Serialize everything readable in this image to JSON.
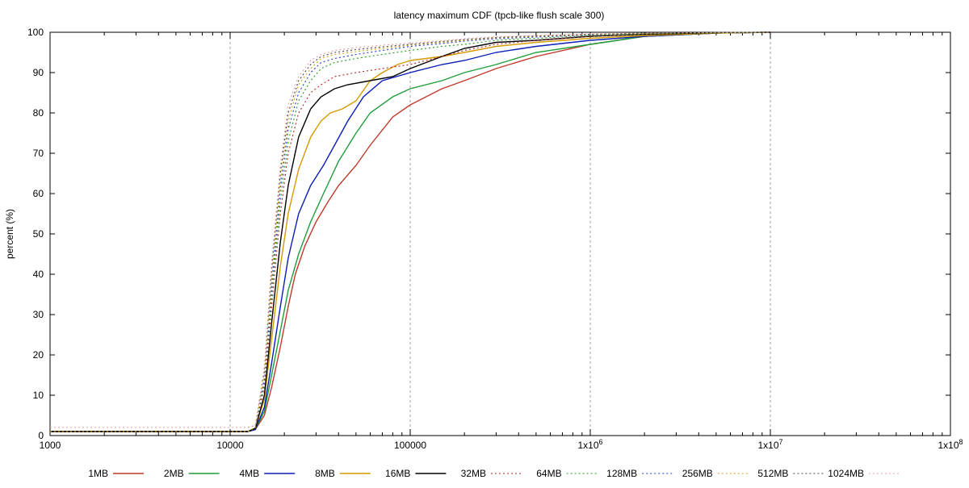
{
  "chart_data": {
    "type": "line",
    "title": "latency maximum CDF (tpcb-like flush scale 300)",
    "xlabel": "",
    "ylabel": "percent (%)",
    "x_scale": "log",
    "xlim": [
      1000,
      100000000
    ],
    "ylim": [
      0,
      100
    ],
    "grid": "vertical dashed at decades",
    "legend_position": "bottom",
    "x_ticks": [
      {
        "value": 1000,
        "label": "1000"
      },
      {
        "value": 10000,
        "label": "10000"
      },
      {
        "value": 100000,
        "label": "100000"
      },
      {
        "value": 1000000,
        "label": "1x10^6"
      },
      {
        "value": 10000000,
        "label": "1x10^7"
      },
      {
        "value": 100000000,
        "label": "1x10^8"
      }
    ],
    "y_ticks": [
      0,
      10,
      20,
      30,
      40,
      50,
      60,
      70,
      80,
      90,
      100
    ],
    "series": [
      {
        "name": "1MB",
        "color": "#c0392b",
        "dash": "solid",
        "points": [
          [
            1000,
            1
          ],
          [
            12500,
            1
          ],
          [
            13800,
            1.5
          ],
          [
            15500,
            5
          ],
          [
            17000,
            12
          ],
          [
            19000,
            22
          ],
          [
            21000,
            32
          ],
          [
            23000,
            40
          ],
          [
            26000,
            47
          ],
          [
            30000,
            53
          ],
          [
            35000,
            58
          ],
          [
            40000,
            62
          ],
          [
            50000,
            67
          ],
          [
            60000,
            72
          ],
          [
            80000,
            79
          ],
          [
            100000,
            82
          ],
          [
            150000,
            86
          ],
          [
            200000,
            88
          ],
          [
            300000,
            91
          ],
          [
            500000,
            94
          ],
          [
            1000000,
            97
          ],
          [
            2000000,
            99
          ],
          [
            5000000,
            99.8
          ],
          [
            10000000,
            100
          ]
        ]
      },
      {
        "name": "2MB",
        "color": "#1e9e3a",
        "dash": "solid",
        "points": [
          [
            1000,
            1
          ],
          [
            12500,
            1
          ],
          [
            13800,
            1.5
          ],
          [
            15500,
            6
          ],
          [
            17000,
            15
          ],
          [
            19000,
            26
          ],
          [
            21000,
            36
          ],
          [
            24000,
            45
          ],
          [
            28000,
            53
          ],
          [
            33000,
            60
          ],
          [
            40000,
            68
          ],
          [
            50000,
            75
          ],
          [
            60000,
            80
          ],
          [
            80000,
            84
          ],
          [
            100000,
            86
          ],
          [
            150000,
            88
          ],
          [
            200000,
            90
          ],
          [
            300000,
            92
          ],
          [
            500000,
            95
          ],
          [
            1000000,
            97
          ],
          [
            2000000,
            99
          ],
          [
            5000000,
            99.8
          ],
          [
            10000000,
            100
          ]
        ]
      },
      {
        "name": "4MB",
        "color": "#0b1fb5",
        "dash": "solid",
        "points": [
          [
            1000,
            1
          ],
          [
            12500,
            1
          ],
          [
            13800,
            1.5
          ],
          [
            15500,
            7
          ],
          [
            17000,
            18
          ],
          [
            19000,
            32
          ],
          [
            21000,
            44
          ],
          [
            24000,
            55
          ],
          [
            28000,
            62
          ],
          [
            33000,
            67
          ],
          [
            38000,
            72
          ],
          [
            45000,
            78
          ],
          [
            55000,
            84
          ],
          [
            70000,
            88
          ],
          [
            100000,
            90
          ],
          [
            150000,
            92
          ],
          [
            200000,
            93
          ],
          [
            300000,
            95
          ],
          [
            500000,
            96.5
          ],
          [
            1000000,
            98
          ],
          [
            2000000,
            99
          ],
          [
            5000000,
            99.8
          ],
          [
            10000000,
            100
          ]
        ]
      },
      {
        "name": "8MB",
        "color": "#d49a00",
        "dash": "solid",
        "points": [
          [
            1000,
            1
          ],
          [
            12500,
            1
          ],
          [
            13800,
            1.8
          ],
          [
            15500,
            9
          ],
          [
            17000,
            24
          ],
          [
            19000,
            42
          ],
          [
            21000,
            55
          ],
          [
            24000,
            66
          ],
          [
            28000,
            74
          ],
          [
            32000,
            78
          ],
          [
            36000,
            80
          ],
          [
            42000,
            81
          ],
          [
            50000,
            83
          ],
          [
            60000,
            88
          ],
          [
            70000,
            90
          ],
          [
            85000,
            92
          ],
          [
            100000,
            93
          ],
          [
            150000,
            94
          ],
          [
            200000,
            95
          ],
          [
            300000,
            96.5
          ],
          [
            500000,
            97.5
          ],
          [
            1000000,
            98.5
          ],
          [
            2000000,
            99.2
          ],
          [
            5000000,
            99.8
          ],
          [
            10000000,
            100
          ]
        ]
      },
      {
        "name": "16MB",
        "color": "#000000",
        "dash": "solid",
        "points": [
          [
            1000,
            1
          ],
          [
            12500,
            1
          ],
          [
            13800,
            1.8
          ],
          [
            15500,
            10
          ],
          [
            17000,
            28
          ],
          [
            19000,
            48
          ],
          [
            21000,
            62
          ],
          [
            24000,
            74
          ],
          [
            28000,
            81
          ],
          [
            32000,
            84
          ],
          [
            38000,
            86
          ],
          [
            45000,
            87
          ],
          [
            60000,
            88
          ],
          [
            80000,
            89
          ],
          [
            100000,
            91
          ],
          [
            150000,
            94
          ],
          [
            200000,
            96
          ],
          [
            300000,
            97.5
          ],
          [
            500000,
            98
          ],
          [
            1000000,
            99
          ],
          [
            2000000,
            99.5
          ],
          [
            5000000,
            99.9
          ],
          [
            10000000,
            100
          ]
        ]
      },
      {
        "name": "32MB",
        "color": "#b22222",
        "dash": "dashed",
        "points": [
          [
            1000,
            1
          ],
          [
            12500,
            1
          ],
          [
            13800,
            2
          ],
          [
            15500,
            12
          ],
          [
            17000,
            32
          ],
          [
            19000,
            55
          ],
          [
            21000,
            70
          ],
          [
            24000,
            80
          ],
          [
            28000,
            85
          ],
          [
            32000,
            87
          ],
          [
            38000,
            89
          ],
          [
            50000,
            90
          ],
          [
            70000,
            91
          ],
          [
            100000,
            92
          ],
          [
            150000,
            94
          ],
          [
            200000,
            95.5
          ],
          [
            300000,
            97
          ],
          [
            500000,
            98
          ],
          [
            1000000,
            99
          ],
          [
            2000000,
            99.5
          ],
          [
            5000000,
            99.9
          ],
          [
            10000000,
            100
          ]
        ]
      },
      {
        "name": "64MB",
        "color": "#229922",
        "dash": "dashed",
        "points": [
          [
            1000,
            1
          ],
          [
            12500,
            1
          ],
          [
            13800,
            2
          ],
          [
            15500,
            13
          ],
          [
            17000,
            35
          ],
          [
            19000,
            58
          ],
          [
            21000,
            73
          ],
          [
            24000,
            83
          ],
          [
            28000,
            88
          ],
          [
            32000,
            91
          ],
          [
            38000,
            92.5
          ],
          [
            50000,
            93.5
          ],
          [
            70000,
            94.5
          ],
          [
            100000,
            95.5
          ],
          [
            150000,
            96.5
          ],
          [
            200000,
            97
          ],
          [
            300000,
            98
          ],
          [
            500000,
            98.5
          ],
          [
            1000000,
            99.2
          ],
          [
            2000000,
            99.6
          ],
          [
            5000000,
            99.9
          ],
          [
            10000000,
            100
          ]
        ]
      },
      {
        "name": "128MB",
        "color": "#1a3ccc",
        "dash": "dashed",
        "points": [
          [
            1000,
            1
          ],
          [
            12500,
            1
          ],
          [
            13800,
            2
          ],
          [
            15500,
            14
          ],
          [
            17000,
            37
          ],
          [
            19000,
            61
          ],
          [
            21000,
            76
          ],
          [
            24000,
            85
          ],
          [
            28000,
            90
          ],
          [
            32000,
            92.5
          ],
          [
            38000,
            93.5
          ],
          [
            50000,
            94.5
          ],
          [
            70000,
            95.5
          ],
          [
            100000,
            96.5
          ],
          [
            150000,
            97.2
          ],
          [
            200000,
            97.8
          ],
          [
            300000,
            98.4
          ],
          [
            500000,
            98.8
          ],
          [
            1000000,
            99.3
          ],
          [
            2000000,
            99.7
          ],
          [
            5000000,
            99.9
          ],
          [
            10000000,
            100
          ]
        ]
      },
      {
        "name": "256MB",
        "color": "#d4a010",
        "dash": "dashed",
        "points": [
          [
            1000,
            1
          ],
          [
            12500,
            1
          ],
          [
            13800,
            2
          ],
          [
            15500,
            15
          ],
          [
            17000,
            39
          ],
          [
            19000,
            63
          ],
          [
            21000,
            78
          ],
          [
            24000,
            87
          ],
          [
            28000,
            91
          ],
          [
            32000,
            93.5
          ],
          [
            38000,
            94.5
          ],
          [
            50000,
            95.2
          ],
          [
            70000,
            96
          ],
          [
            100000,
            96.8
          ],
          [
            150000,
            97.5
          ],
          [
            200000,
            98
          ],
          [
            300000,
            98.6
          ],
          [
            500000,
            99
          ],
          [
            1000000,
            99.4
          ],
          [
            2000000,
            99.7
          ],
          [
            5000000,
            99.9
          ],
          [
            10000000,
            100
          ]
        ]
      },
      {
        "name": "512MB",
        "color": "#444444",
        "dash": "dashed",
        "points": [
          [
            1000,
            2
          ],
          [
            12500,
            2
          ],
          [
            13800,
            2.5
          ],
          [
            15500,
            16
          ],
          [
            17000,
            41
          ],
          [
            19000,
            65
          ],
          [
            21000,
            80
          ],
          [
            24000,
            88
          ],
          [
            28000,
            92
          ],
          [
            32000,
            94
          ],
          [
            38000,
            95
          ],
          [
            50000,
            95.7
          ],
          [
            70000,
            96.4
          ],
          [
            100000,
            97
          ],
          [
            150000,
            97.7
          ],
          [
            200000,
            98.2
          ],
          [
            300000,
            98.7
          ],
          [
            500000,
            99.1
          ],
          [
            1000000,
            99.5
          ],
          [
            2000000,
            99.8
          ],
          [
            5000000,
            99.95
          ],
          [
            10000000,
            100
          ]
        ]
      },
      {
        "name": "1024MB",
        "color": "#e8a0a0",
        "dash": "dashed",
        "points": [
          [
            1000,
            2
          ],
          [
            12500,
            2
          ],
          [
            13800,
            2.5
          ],
          [
            15500,
            17
          ],
          [
            17000,
            43
          ],
          [
            19000,
            67
          ],
          [
            21000,
            82
          ],
          [
            24000,
            89
          ],
          [
            28000,
            93
          ],
          [
            32000,
            94.5
          ],
          [
            38000,
            95.5
          ],
          [
            50000,
            96.2
          ],
          [
            70000,
            96.8
          ],
          [
            100000,
            97.3
          ],
          [
            150000,
            97.9
          ],
          [
            200000,
            98.4
          ],
          [
            300000,
            98.9
          ],
          [
            500000,
            99.2
          ],
          [
            1000000,
            99.6
          ],
          [
            2000000,
            99.8
          ],
          [
            5000000,
            99.95
          ],
          [
            10000000,
            100
          ]
        ]
      }
    ]
  }
}
